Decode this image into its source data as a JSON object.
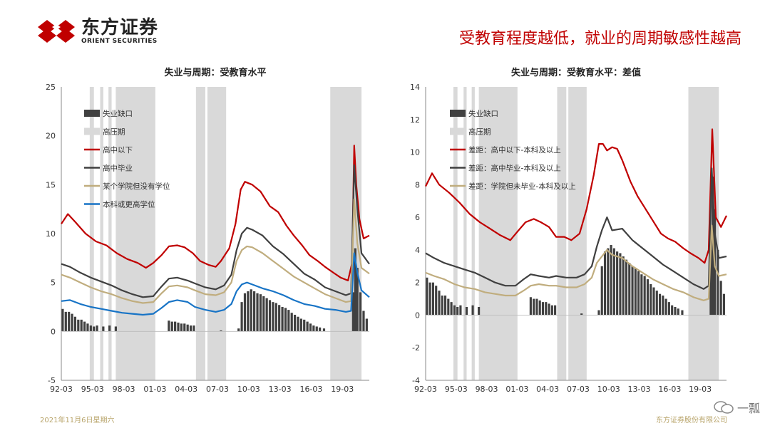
{
  "header": {
    "logo_cn": "东方证券",
    "logo_en": "ORIENT SECURITIES",
    "headline": "受教育程度越低，就业的周期敏感性越高"
  },
  "footer": {
    "date": "2021年11月6日星期六",
    "company": "东方证券股份有限公司",
    "watermark": "一瓢"
  },
  "colors": {
    "red": "#c00000",
    "dark": "#404040",
    "tan": "#c0ad7e",
    "blue": "#1874c6",
    "bar": "#404040",
    "band": "#d9d9d9"
  },
  "chart_data": [
    {
      "type": "line",
      "title": "失业与周期：受教育水平",
      "x_ticks": [
        "92-03",
        "95-03",
        "98-03",
        "01-03",
        "04-03",
        "07-03",
        "10-03",
        "13-03",
        "16-03",
        "19-03"
      ],
      "x_range": [
        1992.17,
        2021.75
      ],
      "ylim": [
        -5,
        25
      ],
      "y_ticks": [
        -5,
        0,
        5,
        10,
        15,
        20,
        25
      ],
      "legend": [
        "失业缺口",
        "高压期",
        "高中以下",
        "高中毕业",
        "某个学院但没有学位",
        "本科或更高学位"
      ],
      "shaded_periods": [
        [
          1994.9,
          1995.3
        ],
        [
          1995.9,
          1996.2
        ],
        [
          1996.7,
          1997.0
        ],
        [
          1997.4,
          2001.2
        ],
        [
          2005.1,
          2006.0
        ],
        [
          2006.2,
          2008.0
        ],
        [
          2018.0,
          2021.0
        ]
      ],
      "series": [
        {
          "name": "高中以下",
          "color": "red",
          "x": [
            1992.17,
            1992.8,
            1993.5,
            1994.5,
            1995.5,
            1996.5,
            1997.5,
            1998.5,
            1999.5,
            2000.3,
            2001.0,
            2001.8,
            2002.5,
            2003.3,
            2004.0,
            2004.8,
            2005.5,
            2006.3,
            2007.0,
            2007.5,
            2008.3,
            2008.9,
            2009.4,
            2009.8,
            2010.5,
            2011.3,
            2012.2,
            2013.0,
            2013.8,
            2014.5,
            2015.3,
            2016.0,
            2016.8,
            2017.5,
            2018.3,
            2019.0,
            2019.7,
            2020.1,
            2020.3,
            2020.5,
            2020.8,
            2021.2,
            2021.75
          ],
          "y": [
            11.0,
            12.0,
            11.2,
            10.0,
            9.2,
            8.8,
            8.0,
            7.4,
            7.0,
            6.5,
            7.0,
            7.8,
            8.7,
            8.8,
            8.6,
            8.0,
            7.2,
            6.8,
            6.6,
            7.2,
            8.5,
            11.0,
            14.5,
            15.3,
            15.0,
            14.3,
            12.8,
            12.2,
            10.8,
            9.8,
            8.8,
            7.8,
            7.2,
            6.6,
            6.0,
            5.5,
            5.2,
            7.0,
            19.0,
            15.0,
            11.5,
            9.5,
            9.8
          ]
        },
        {
          "name": "高中毕业",
          "color": "dark",
          "x": [
            1992.17,
            1993.0,
            1994.0,
            1995.0,
            1996.0,
            1997.0,
            1998.0,
            1999.0,
            2000.0,
            2001.0,
            2001.8,
            2002.5,
            2003.3,
            2004.3,
            2005.0,
            2006.0,
            2007.0,
            2007.8,
            2008.5,
            2009.0,
            2009.5,
            2010.0,
            2010.5,
            2011.5,
            2012.5,
            2013.5,
            2014.5,
            2015.5,
            2016.5,
            2017.5,
            2018.5,
            2019.5,
            2020.0,
            2020.3,
            2020.6,
            2021.0,
            2021.75
          ],
          "y": [
            6.9,
            6.6,
            6.0,
            5.5,
            5.1,
            4.7,
            4.2,
            3.8,
            3.5,
            3.6,
            4.6,
            5.4,
            5.5,
            5.2,
            4.9,
            4.5,
            4.3,
            4.7,
            5.8,
            8.3,
            10.0,
            10.6,
            10.4,
            9.8,
            8.7,
            7.9,
            6.9,
            5.9,
            5.3,
            4.5,
            4.1,
            3.7,
            3.9,
            17.0,
            12.5,
            8.0,
            6.9
          ]
        },
        {
          "name": "某个学院但没有学位",
          "color": "tan",
          "x": [
            1992.17,
            1993.0,
            1994.0,
            1995.0,
            1996.0,
            1997.0,
            1998.0,
            1999.0,
            2000.0,
            2001.0,
            2001.8,
            2002.5,
            2003.3,
            2004.3,
            2005.0,
            2006.0,
            2007.0,
            2007.8,
            2008.5,
            2009.0,
            2009.5,
            2010.0,
            2010.5,
            2011.5,
            2012.5,
            2013.5,
            2014.5,
            2015.5,
            2016.5,
            2017.5,
            2018.5,
            2019.5,
            2020.0,
            2020.3,
            2020.6,
            2021.0,
            2021.75
          ],
          "y": [
            5.8,
            5.5,
            5.0,
            4.5,
            4.1,
            3.8,
            3.4,
            3.1,
            2.9,
            3.0,
            3.9,
            4.6,
            4.7,
            4.5,
            4.2,
            3.8,
            3.7,
            4.0,
            5.0,
            7.2,
            8.3,
            8.7,
            8.6,
            8.0,
            7.2,
            6.4,
            5.6,
            5.0,
            4.4,
            3.8,
            3.4,
            3.0,
            3.1,
            13.5,
            9.0,
            6.5,
            5.9
          ]
        },
        {
          "name": "本科或更高学位",
          "color": "blue",
          "x": [
            1992.17,
            1993.0,
            1994.0,
            1995.0,
            1996.0,
            1997.0,
            1998.0,
            1999.0,
            2000.0,
            2001.0,
            2001.8,
            2002.5,
            2003.3,
            2004.3,
            2005.0,
            2006.0,
            2007.0,
            2007.8,
            2008.5,
            2009.0,
            2009.5,
            2010.0,
            2010.5,
            2011.5,
            2012.5,
            2013.5,
            2014.5,
            2015.5,
            2016.5,
            2017.5,
            2018.5,
            2019.5,
            2020.0,
            2020.3,
            2020.6,
            2021.0,
            2021.75
          ],
          "y": [
            3.1,
            3.2,
            2.8,
            2.5,
            2.3,
            2.1,
            1.9,
            1.8,
            1.7,
            1.8,
            2.4,
            3.0,
            3.2,
            3.0,
            2.5,
            2.2,
            2.0,
            2.2,
            2.8,
            4.1,
            4.8,
            5.0,
            4.8,
            4.4,
            4.1,
            3.7,
            3.2,
            2.8,
            2.6,
            2.3,
            2.2,
            2.0,
            2.1,
            8.0,
            6.0,
            4.2,
            3.5
          ]
        }
      ],
      "bars": {
        "name": "失业缺口",
        "x": [
          1992.3,
          1992.6,
          1992.9,
          1993.2,
          1993.5,
          1993.8,
          1994.1,
          1994.4,
          1994.7,
          1995.0,
          1995.3,
          1995.6,
          1996.2,
          1996.8,
          1997.4,
          2002.5,
          2002.8,
          2003.1,
          2003.4,
          2003.7,
          2004.0,
          2004.3,
          2004.6,
          2004.9,
          2007.5,
          2009.2,
          2009.5,
          2009.8,
          2010.1,
          2010.4,
          2010.7,
          2011.0,
          2011.3,
          2011.6,
          2011.9,
          2012.2,
          2012.5,
          2012.8,
          2013.1,
          2013.4,
          2013.7,
          2014.0,
          2014.3,
          2014.6,
          2014.9,
          2015.2,
          2015.5,
          2015.8,
          2016.1,
          2016.4,
          2016.7,
          2017.0,
          2017.4,
          2020.2,
          2020.4,
          2020.6,
          2020.9,
          2021.2,
          2021.5
        ],
        "values": [
          2.3,
          2.0,
          2.0,
          1.8,
          1.5,
          1.2,
          1.2,
          1.0,
          0.8,
          0.6,
          0.5,
          0.6,
          0.5,
          0.6,
          0.5,
          1.1,
          1.0,
          1.0,
          0.9,
          0.8,
          0.8,
          0.7,
          0.6,
          0.6,
          0.1,
          0.3,
          3.0,
          3.9,
          4.1,
          4.3,
          4.1,
          3.9,
          3.8,
          3.6,
          3.4,
          3.2,
          3.0,
          2.9,
          2.7,
          2.5,
          2.4,
          2.2,
          1.9,
          1.7,
          1.5,
          1.3,
          1.2,
          1.0,
          0.8,
          0.6,
          0.5,
          0.4,
          0.3,
          4.0,
          8.5,
          6.5,
          4.0,
          2.1,
          1.3
        ]
      }
    },
    {
      "type": "line",
      "title": "失业与周期：受教育水平：差值",
      "x_ticks": [
        "92-03",
        "95-03",
        "98-03",
        "01-03",
        "04-03",
        "07-03",
        "10-03",
        "13-03",
        "16-03",
        "19-03"
      ],
      "x_range": [
        1992.17,
        2021.75
      ],
      "ylim": [
        -4,
        14
      ],
      "y_ticks": [
        -4,
        -2,
        0,
        2,
        4,
        6,
        8,
        10,
        12,
        14
      ],
      "legend": [
        "失业缺口",
        "高压期",
        "差距：高中以下-本科及以上",
        "差距：高中毕业-本科及以上",
        "差距：学院但未毕业-本科及以上"
      ],
      "shaded_periods": [
        [
          1994.9,
          1995.3
        ],
        [
          1995.9,
          1996.2
        ],
        [
          1996.7,
          1997.0
        ],
        [
          1997.4,
          2001.2
        ],
        [
          2005.1,
          2006.0
        ],
        [
          2006.2,
          2008.0
        ],
        [
          2018.0,
          2021.0
        ]
      ],
      "series": [
        {
          "name": "差距：高中以下-本科及以上",
          "color": "red",
          "x": [
            1992.17,
            1992.8,
            1993.5,
            1994.5,
            1995.5,
            1996.5,
            1997.5,
            1998.5,
            1999.5,
            2000.5,
            2001.3,
            2002.0,
            2002.8,
            2003.5,
            2004.3,
            2005.0,
            2005.8,
            2006.5,
            2007.3,
            2008.0,
            2008.7,
            2009.2,
            2009.6,
            2010.0,
            2010.5,
            2011.0,
            2011.5,
            2012.3,
            2013.0,
            2013.8,
            2014.5,
            2015.3,
            2016.0,
            2016.7,
            2017.5,
            2018.2,
            2019.0,
            2019.6,
            2020.0,
            2020.35,
            2020.7,
            2021.2,
            2021.75
          ],
          "y": [
            7.9,
            8.7,
            8.0,
            7.5,
            6.9,
            6.2,
            5.7,
            5.3,
            4.9,
            4.6,
            5.2,
            5.7,
            5.9,
            5.7,
            5.4,
            4.8,
            4.8,
            4.6,
            5.0,
            6.5,
            8.6,
            10.5,
            10.5,
            10.1,
            10.3,
            10.2,
            9.5,
            8.2,
            7.3,
            6.5,
            5.8,
            5.0,
            4.7,
            4.5,
            4.1,
            3.8,
            3.5,
            3.2,
            4.0,
            11.4,
            6.0,
            5.4,
            6.1
          ]
        },
        {
          "name": "差距：高中毕业-本科及以上",
          "color": "dark",
          "x": [
            1992.17,
            1993.0,
            1994.0,
            1995.0,
            1996.0,
            1997.0,
            1998.0,
            1999.0,
            2000.0,
            2001.0,
            2001.8,
            2002.5,
            2003.3,
            2004.3,
            2005.0,
            2006.0,
            2007.0,
            2007.8,
            2008.5,
            2009.0,
            2009.5,
            2010.0,
            2010.5,
            2011.5,
            2012.5,
            2013.5,
            2014.5,
            2015.5,
            2016.5,
            2017.5,
            2018.5,
            2019.5,
            2020.0,
            2020.3,
            2020.6,
            2021.0,
            2021.75
          ],
          "y": [
            3.8,
            3.5,
            3.2,
            3.0,
            2.8,
            2.6,
            2.3,
            2.0,
            1.8,
            1.8,
            2.2,
            2.5,
            2.4,
            2.3,
            2.4,
            2.3,
            2.3,
            2.5,
            3.0,
            4.2,
            5.2,
            6.0,
            5.2,
            5.3,
            4.6,
            4.1,
            3.6,
            3.1,
            2.7,
            2.3,
            1.9,
            1.6,
            1.8,
            9.0,
            5.0,
            3.5,
            3.6
          ]
        },
        {
          "name": "差距：学院但未毕业-本科及以上",
          "color": "tan",
          "x": [
            1992.17,
            1993.0,
            1994.0,
            1995.0,
            1996.0,
            1997.0,
            1998.0,
            1999.0,
            2000.0,
            2001.0,
            2001.8,
            2002.5,
            2003.3,
            2004.3,
            2005.0,
            2006.0,
            2007.0,
            2007.8,
            2008.5,
            2009.0,
            2009.5,
            2010.0,
            2010.5,
            2011.5,
            2012.5,
            2013.5,
            2014.5,
            2015.5,
            2016.5,
            2017.5,
            2018.5,
            2019.5,
            2020.0,
            2020.3,
            2020.6,
            2021.0,
            2021.75
          ],
          "y": [
            2.6,
            2.4,
            2.2,
            1.9,
            1.7,
            1.6,
            1.4,
            1.3,
            1.2,
            1.2,
            1.5,
            1.8,
            1.9,
            1.8,
            1.8,
            1.7,
            1.7,
            1.9,
            2.3,
            3.2,
            3.6,
            4.0,
            3.7,
            3.5,
            3.0,
            2.6,
            2.2,
            1.9,
            1.6,
            1.4,
            1.1,
            0.9,
            1.0,
            5.5,
            3.0,
            2.4,
            2.5
          ]
        }
      ],
      "bars": {
        "name": "失业缺口",
        "x": [
          1992.3,
          1992.6,
          1992.9,
          1993.2,
          1993.5,
          1993.8,
          1994.1,
          1994.4,
          1994.7,
          1995.0,
          1995.3,
          1995.6,
          1996.2,
          1996.8,
          1997.4,
          2002.5,
          2002.8,
          2003.1,
          2003.4,
          2003.7,
          2004.0,
          2004.3,
          2004.6,
          2004.9,
          2007.5,
          2009.2,
          2009.5,
          2009.8,
          2010.1,
          2010.4,
          2010.7,
          2011.0,
          2011.3,
          2011.6,
          2011.9,
          2012.2,
          2012.5,
          2012.8,
          2013.1,
          2013.4,
          2013.7,
          2014.0,
          2014.3,
          2014.6,
          2014.9,
          2015.2,
          2015.5,
          2015.8,
          2016.1,
          2016.4,
          2016.7,
          2017.0,
          2017.4,
          2020.2,
          2020.4,
          2020.6,
          2020.9,
          2021.2,
          2021.5
        ],
        "values": [
          2.3,
          2.0,
          2.0,
          1.8,
          1.5,
          1.2,
          1.2,
          1.0,
          0.8,
          0.6,
          0.5,
          0.6,
          0.5,
          0.6,
          0.5,
          1.1,
          1.0,
          1.0,
          0.9,
          0.8,
          0.8,
          0.7,
          0.6,
          0.6,
          0.1,
          0.3,
          3.0,
          3.9,
          4.1,
          4.3,
          4.1,
          3.9,
          3.8,
          3.6,
          3.4,
          3.2,
          3.0,
          2.9,
          2.7,
          2.5,
          2.4,
          2.2,
          1.9,
          1.7,
          1.5,
          1.3,
          1.2,
          1.0,
          0.8,
          0.6,
          0.5,
          0.4,
          0.3,
          4.0,
          8.5,
          6.5,
          4.0,
          2.1,
          1.3
        ]
      }
    }
  ]
}
